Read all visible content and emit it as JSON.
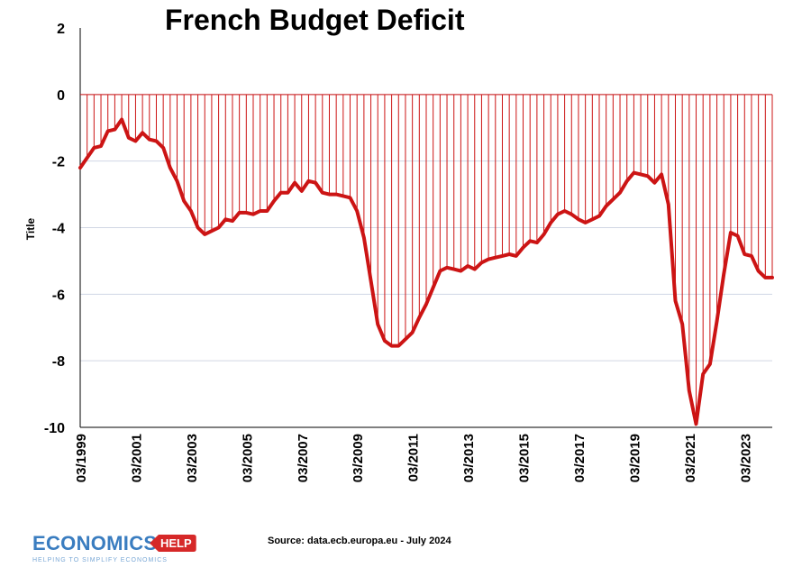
{
  "title": "French Budget Deficit",
  "source": "Source: data.ecb.europa.eu - July 2024",
  "logo": {
    "main": "ECONOMICS",
    "tag": "HELP",
    "tagline": "HELPING TO SIMPLIFY ECONOMICS"
  },
  "colors": {
    "line": "#cc1414",
    "drop_lines": "#cc1414",
    "grid": "#d0d6e4",
    "axis": "#000000"
  },
  "chart_data": {
    "type": "line",
    "title": "French Budget Deficit",
    "ylabel": "Title",
    "xlabel": "",
    "ylim": [
      -10,
      2
    ],
    "yticks": [
      2,
      0,
      -2,
      -4,
      -6,
      -8,
      -10
    ],
    "xticks": [
      "03/1999",
      "03/2001",
      "03/2003",
      "03/2005",
      "03/2007",
      "03/2009",
      "03/2011",
      "03/2013",
      "03/2015",
      "03/2017",
      "03/2019",
      "03/2021",
      "03/2023"
    ],
    "x_start": "03/1999",
    "frequency": "quarterly",
    "grid": true,
    "values": [
      -2.2,
      -1.9,
      -1.6,
      -1.55,
      -1.1,
      -1.05,
      -0.75,
      -1.3,
      -1.4,
      -1.15,
      -1.35,
      -1.4,
      -1.6,
      -2.2,
      -2.6,
      -3.2,
      -3.5,
      -4.0,
      -4.2,
      -4.1,
      -4.0,
      -3.75,
      -3.8,
      -3.55,
      -3.55,
      -3.6,
      -3.5,
      -3.5,
      -3.2,
      -2.95,
      -2.95,
      -2.65,
      -2.9,
      -2.6,
      -2.65,
      -2.95,
      -3.0,
      -3.0,
      -3.05,
      -3.1,
      -3.5,
      -4.3,
      -5.6,
      -6.9,
      -7.4,
      -7.55,
      -7.55,
      -7.35,
      -7.15,
      -6.7,
      -6.3,
      -5.8,
      -5.3,
      -5.2,
      -5.25,
      -5.3,
      -5.15,
      -5.25,
      -5.05,
      -4.95,
      -4.9,
      -4.85,
      -4.8,
      -4.85,
      -4.6,
      -4.4,
      -4.45,
      -4.2,
      -3.85,
      -3.6,
      -3.5,
      -3.6,
      -3.75,
      -3.85,
      -3.75,
      -3.65,
      -3.35,
      -3.15,
      -2.95,
      -2.6,
      -2.35,
      -2.4,
      -2.45,
      -2.65,
      -2.4,
      -3.3,
      -6.2,
      -6.9,
      -8.9,
      -9.9,
      -8.4,
      -8.1,
      -6.8,
      -5.4,
      -4.15,
      -4.25,
      -4.8,
      -4.85,
      -5.3,
      -5.5,
      -5.5
    ]
  }
}
